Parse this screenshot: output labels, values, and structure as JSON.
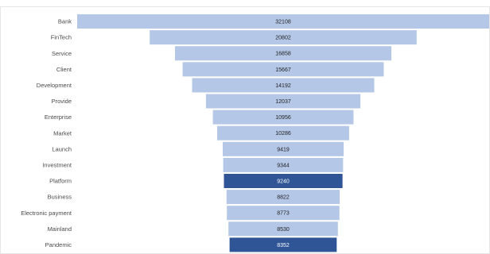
{
  "chart_data": {
    "type": "bar",
    "orientation": "horizontal-funnel",
    "categories": [
      "Bank",
      "FinTech",
      "Service",
      "Client",
      "Development",
      "Provide",
      "Enterprise",
      "Market",
      "Launch",
      "Investment",
      "Platform",
      "Business",
      "Electronic payment",
      "Mainland",
      "Pandemic"
    ],
    "values": [
      32108,
      20802,
      16858,
      15667,
      14192,
      12037,
      10956,
      10286,
      9419,
      9344,
      9240,
      8822,
      8773,
      8530,
      8352
    ],
    "highlighted": [
      "Platform",
      "Pandemic"
    ],
    "title": "",
    "xlabel": "",
    "ylabel": "",
    "grid": false,
    "legend": "none"
  },
  "colors": {
    "bar": "#b4c7e7",
    "bar_highlight": "#2f5597",
    "value_text": "#1f1f1f",
    "value_text_highlight": "#ffffff"
  }
}
